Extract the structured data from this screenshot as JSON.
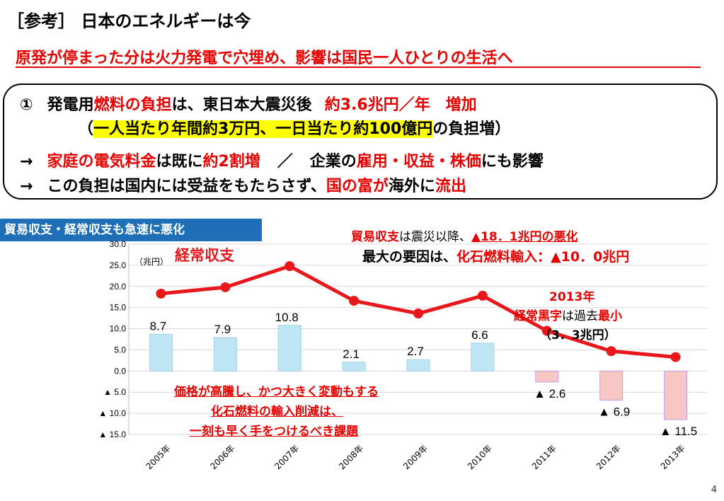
{
  "slide": {
    "title": "［参考］ 日本のエネルギーは今",
    "headline": "原発が停まった分は火力発電で穴埋め、影響は国民一人ひとりの生活へ",
    "page_number": "4"
  },
  "summary": {
    "line1": {
      "num": "①",
      "a": "発電用",
      "b": "燃料の負担",
      "c": "は、東日本大震災後",
      "d": "約3.6兆円／年　増加"
    },
    "line2": {
      "open": "（",
      "a": "一人当たり年間約3万円、一日当たり約100億円",
      "b": "の負担増）"
    },
    "line3": {
      "arrow": "→",
      "a": "家庭の電気料金",
      "b": "は既に",
      "c": "約2割増",
      "d": "／",
      "e": "企業の",
      "f": "雇用・収益・株価",
      "g": "にも影響"
    },
    "line4": {
      "arrow": "→",
      "a": "この負担は国内には受益をもたらさず、",
      "b": "国の富が",
      "c": "海外に",
      "d": "流出"
    }
  },
  "chart_header": "貿易収支・経常収支も急速に悪化",
  "notes": {
    "trade_a": "貿易収支",
    "trade_b": "は震災以降、",
    "trade_c": "▲18．1兆円の悪化",
    "cause_a": "最大の要因は、",
    "cause_b": "化石燃料輸入：▲10．0兆円",
    "y2013_a": "2013年",
    "y2013_b": "経常黒字",
    "y2013_c": "は過去",
    "y2013_d": "最小",
    "y2013_e": "（3．3兆円）",
    "price_1": "価格が高騰し、かつ大きく変動もする",
    "price_2": "化石燃料の輸入削減は、",
    "price_3": "一刻も早く手をつけるべき課題"
  },
  "colors": {
    "line": "#e8171b",
    "bar_positive": "#bfe6f5",
    "bar_negative": "#f9c6c6",
    "header_bg": "#1f6fb7",
    "accent_red": "#e60000"
  },
  "chart_data": {
    "type": "bar",
    "unit_label": "（兆円）",
    "categories": [
      "2005年",
      "2006年",
      "2007年",
      "2008年",
      "2009年",
      "2010年",
      "2011年",
      "2012年",
      "2013年"
    ],
    "ylim": [
      -15,
      30
    ],
    "yticks": [
      30,
      25,
      20,
      15,
      10,
      5,
      0,
      -5,
      -10,
      -15
    ],
    "ytick_labels": [
      "30.0",
      "25.0",
      "20.0",
      "15.0",
      "10.0",
      "5.0",
      "0.0",
      "▲ 5.0",
      "▲ 10.0",
      "▲ 15.0"
    ],
    "series": [
      {
        "type": "bar",
        "values": [
          8.7,
          7.9,
          10.8,
          2.1,
          2.7,
          6.6,
          -2.6,
          -6.9,
          -11.5
        ],
        "labels": [
          "8.7",
          "7.9",
          "10.8",
          "2.1",
          "2.7",
          "6.6",
          "▲ 2.6",
          "▲ 6.9",
          "▲ 11.5"
        ]
      },
      {
        "type": "line",
        "name": "経常収支",
        "values": [
          18.3,
          19.8,
          24.8,
          16.6,
          13.6,
          17.8,
          9.5,
          4.7,
          3.3
        ]
      }
    ]
  }
}
